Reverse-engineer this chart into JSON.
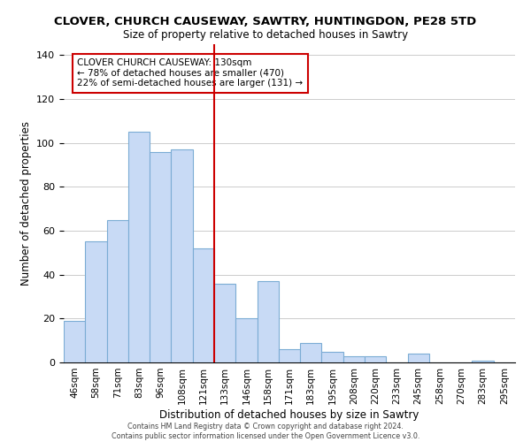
{
  "title": "CLOVER, CHURCH CAUSEWAY, SAWTRY, HUNTINGDON, PE28 5TD",
  "subtitle": "Size of property relative to detached houses in Sawtry",
  "xlabel": "Distribution of detached houses by size in Sawtry",
  "ylabel": "Number of detached properties",
  "bar_labels": [
    "46sqm",
    "58sqm",
    "71sqm",
    "83sqm",
    "96sqm",
    "108sqm",
    "121sqm",
    "133sqm",
    "146sqm",
    "158sqm",
    "171sqm",
    "183sqm",
    "195sqm",
    "208sqm",
    "220sqm",
    "233sqm",
    "245sqm",
    "258sqm",
    "270sqm",
    "283sqm",
    "295sqm"
  ],
  "bar_values": [
    19,
    55,
    65,
    105,
    96,
    97,
    52,
    36,
    20,
    37,
    6,
    9,
    5,
    3,
    3,
    0,
    4,
    0,
    0,
    1,
    0
  ],
  "bar_color": "#c8daf5",
  "bar_edge_color": "#7bacd4",
  "vline_x": 7,
  "vline_color": "#cc0000",
  "annotation_title": "CLOVER CHURCH CAUSEWAY: 130sqm",
  "annotation_line1": "← 78% of detached houses are smaller (470)",
  "annotation_line2": "22% of semi-detached houses are larger (131) →",
  "annotation_box_color": "#ffffff",
  "annotation_box_edge": "#cc0000",
  "ylim": [
    0,
    145
  ],
  "footer1": "Contains HM Land Registry data © Crown copyright and database right 2024.",
  "footer2": "Contains public sector information licensed under the Open Government Licence v3.0."
}
